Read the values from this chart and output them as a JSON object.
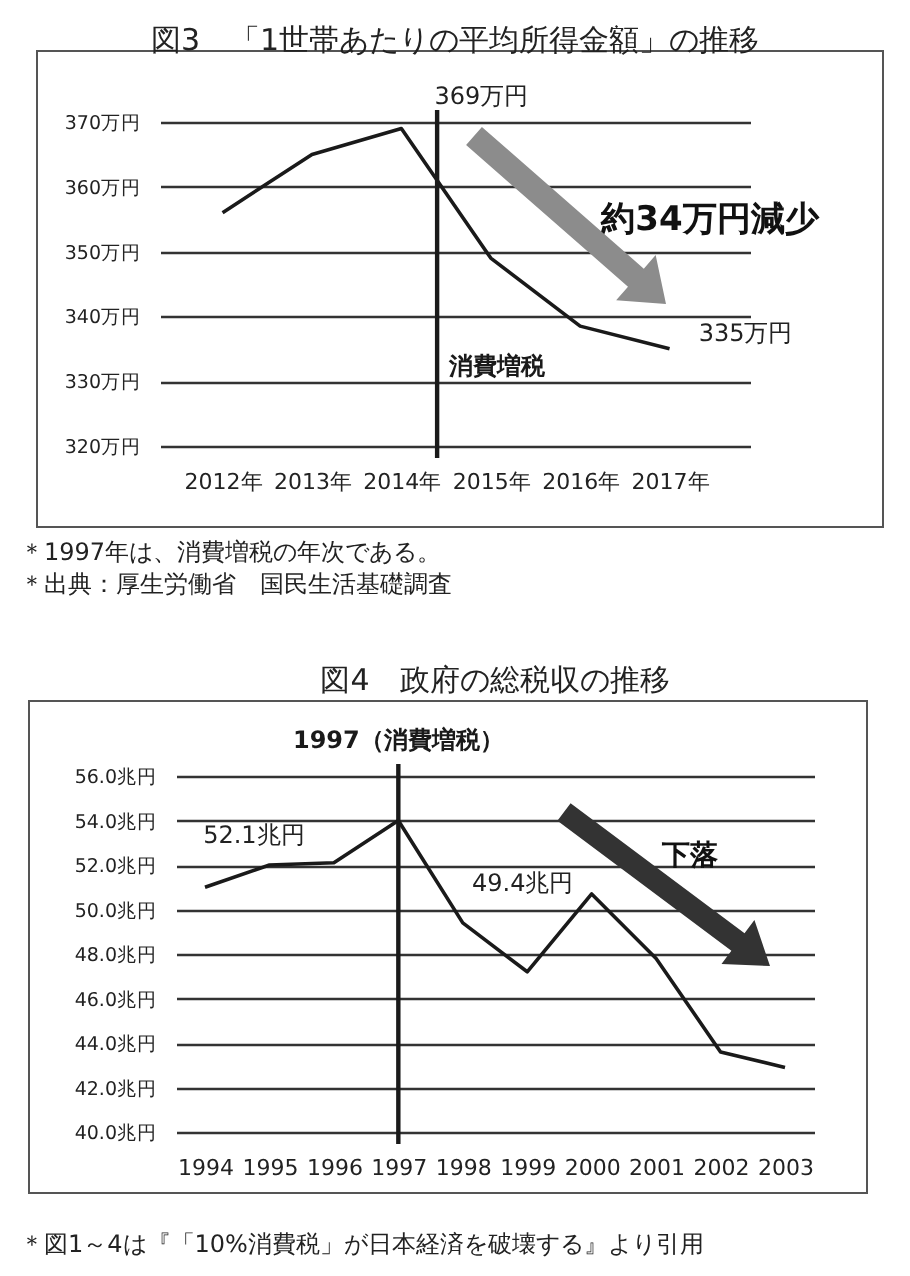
{
  "chart_data": [
    {
      "type": "line",
      "title": "図3　「1世帯あたりの平均所得金額」の推移",
      "x": [
        2012,
        2013,
        2014,
        2015,
        2016,
        2017
      ],
      "series": [
        {
          "color": "#1a1a1a",
          "values": [
            356,
            365,
            369,
            349,
            338.5,
            335
          ]
        }
      ],
      "xlim": [
        2011.3,
        2017.9
      ],
      "xticks": [
        {
          "value": 2012,
          "label": "2012年"
        },
        {
          "value": 2013,
          "label": "2013年"
        },
        {
          "value": 2014,
          "label": "2014年"
        },
        {
          "value": 2015,
          "label": "2015年"
        },
        {
          "value": 2016,
          "label": "2016年"
        },
        {
          "value": 2017,
          "label": "2017年"
        }
      ],
      "ylim": [
        320,
        370
      ],
      "yticks": [
        {
          "value": 320,
          "label": "320万円"
        },
        {
          "value": 330,
          "label": "330万円"
        },
        {
          "value": 340,
          "label": "340万円"
        },
        {
          "value": 350,
          "label": "350万円"
        },
        {
          "value": 360,
          "label": "360万円"
        },
        {
          "value": 370,
          "label": "370万円"
        }
      ],
      "grid": "y",
      "ref_lines": [
        {
          "axis": "x",
          "value": 2014.4,
          "label": "消費増税",
          "color": "#1a1a1a"
        }
      ],
      "annotations": [
        "約34万円減少",
        {
          "text": "369万円",
          "x": 2014,
          "y": 369
        },
        {
          "text": "335万円",
          "x": 2017,
          "y": 335
        },
        "＊1997年は、消費増税の年次である。",
        "＊出典：厚生労働省　国民生活基礎調査"
      ]
    },
    {
      "type": "line",
      "title": "図4　政府の総税収の推移",
      "categories": [
        "1994",
        "1995",
        "1996",
        "1997",
        "1998",
        "1999",
        "2000",
        "2001",
        "2002",
        "2003"
      ],
      "series": [
        {
          "color": "#1a1a1a",
          "values": [
            51.0,
            52.0,
            52.1,
            54.0,
            49.4,
            47.2,
            50.7,
            47.8,
            43.6,
            42.9
          ]
        }
      ],
      "ylim": [
        40,
        56
      ],
      "yticks": [
        {
          "value": 40,
          "label": "40.0兆円"
        },
        {
          "value": 42,
          "label": "42.0兆円"
        },
        {
          "value": 44,
          "label": "44.0兆円"
        },
        {
          "value": 46,
          "label": "46.0兆円"
        },
        {
          "value": 48,
          "label": "48.0兆円"
        },
        {
          "value": 50,
          "label": "50.0兆円"
        },
        {
          "value": 52,
          "label": "52.0兆円"
        },
        {
          "value": 54,
          "label": "54.0兆円"
        },
        {
          "value": 56,
          "label": "56.0兆円"
        }
      ],
      "grid": "y",
      "ref_lines": [
        {
          "axis": "x",
          "value": "1997",
          "label": "1997（消費増税）",
          "color": "#1a1a1a"
        }
      ],
      "annotations": [
        "下落",
        {
          "text": "52.1兆円",
          "x": "1996",
          "y": 52.1
        },
        {
          "text": "49.4兆円",
          "x": "1998",
          "y": 49.4
        },
        "＊図1～4は『「10%消費税」が日本経済を破壊する』より引用"
      ]
    }
  ]
}
